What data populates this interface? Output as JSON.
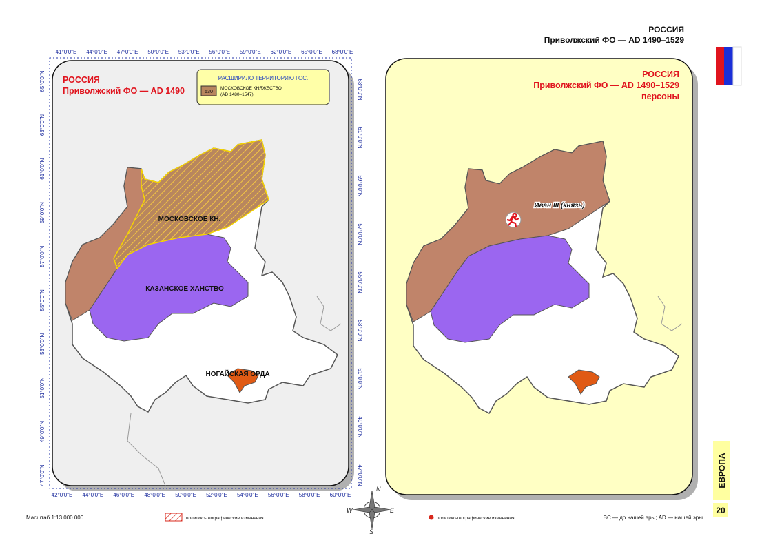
{
  "header": {
    "country": "РОССИЯ",
    "subtitle": "Приволжский ФО — AD 1490–1529"
  },
  "left_map": {
    "title": "РОССИЯ",
    "subtitle": "Приволжский ФО — AD 1490",
    "legend": {
      "heading": "РАСШИРИЛО ТЕРРИТОРИЮ ГОС.",
      "code": "530",
      "name": "МОСКОВСКОЕ КНЯЖЕСТВО",
      "period": "(AD 1480–1547)"
    },
    "labels": [
      "МОСКОВСКОЕ КН.",
      "КАЗАНСКОЕ ХАНСТВО",
      "НОГАЙСКАЯ ОРДА"
    ],
    "top_axis": [
      "41°0'0\"E",
      "44°0'0\"E",
      "47°0'0\"E",
      "50°0'0\"E",
      "53°0'0\"E",
      "56°0'0\"E",
      "59°0'0\"E",
      "62°0'0\"E",
      "65°0'0\"E",
      "68°0'0\"E"
    ],
    "bottom_axis": [
      "42°0'0\"E",
      "44°0'0\"E",
      "46°0'0\"E",
      "48°0'0\"E",
      "50°0'0\"E",
      "52°0'0\"E",
      "54°0'0\"E",
      "56°0'0\"E",
      "58°0'0\"E",
      "60°0'0\"E"
    ],
    "left_axis": [
      "65°0'0\"N",
      "63°0'0\"N",
      "61°0'0\"N",
      "59°0'0\"N",
      "57°0'0\"N",
      "55°0'0\"N",
      "53°0'0\"N",
      "51°0'0\"N",
      "49°0'0\"N",
      "47°0'0\"N"
    ],
    "right_axis": [
      "63°0'0\"N",
      "61°0'0\"N",
      "59°0'0\"N",
      "57°0'0\"N",
      "55°0'0\"N",
      "53°0'0\"N",
      "51°0'0\"N",
      "49°0'0\"N",
      "47°0'0\"N"
    ]
  },
  "right_map": {
    "title": "РОССИЯ",
    "subtitle": "Приволжский ФО — AD 1490–1529",
    "note": "персоны",
    "person": "Иван III (князь)"
  },
  "compass": {
    "n": "N",
    "s": "S",
    "e": "E",
    "w": "W"
  },
  "footer": {
    "scale": "Масштаб 1:13 000 000",
    "legend_hatch": "политико-географические изменения",
    "legend_dot": "политико-географические изменения",
    "era_note": "BC — до нашей эры; AD — нашей эры"
  },
  "side_tab": "ЕВРОПА",
  "page_number": "20"
}
